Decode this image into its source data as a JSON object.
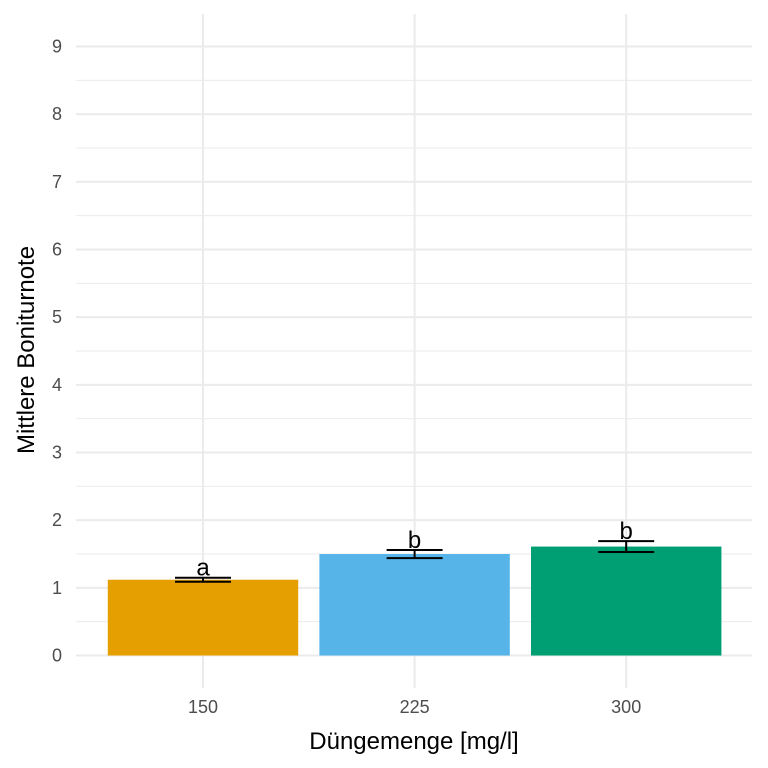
{
  "chart_data": {
    "type": "bar",
    "categories": [
      "150",
      "225",
      "300"
    ],
    "values": [
      1.12,
      1.5,
      1.61
    ],
    "errors": [
      0.03,
      0.06,
      0.08
    ],
    "sig_letters": [
      "a",
      "b",
      "b"
    ],
    "colors": [
      "#E69F00",
      "#56B4E9",
      "#009E73"
    ],
    "xlabel": "Düngemenge [mg/l]",
    "ylabel": "Mittlere Boniturnote",
    "ylim": [
      0,
      9
    ],
    "yticks": [
      0,
      1,
      2,
      3,
      4,
      5,
      6,
      7,
      8,
      9
    ],
    "grid": true,
    "legend": "none"
  }
}
